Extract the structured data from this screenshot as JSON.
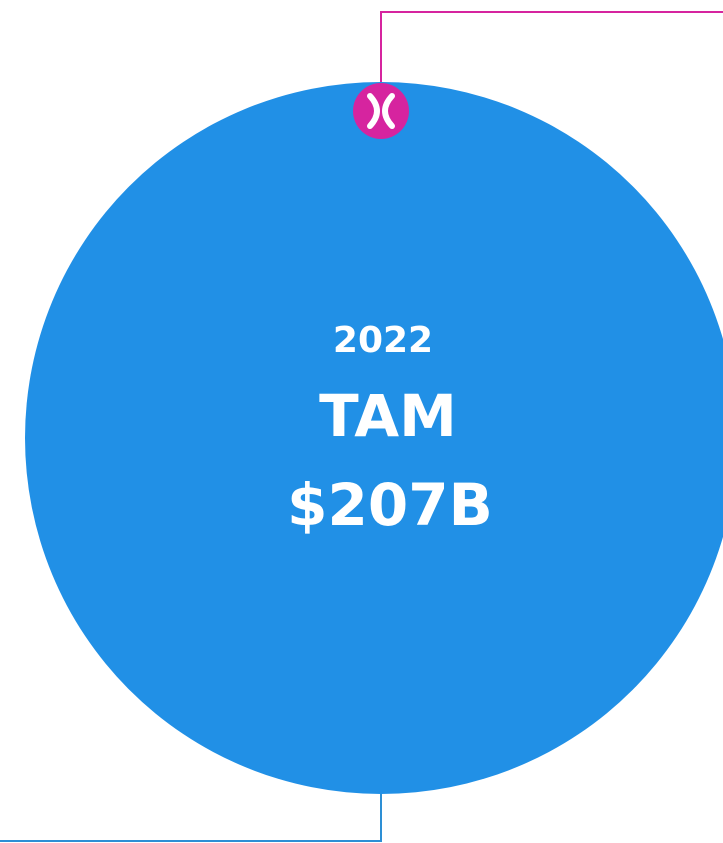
{
  "year": "2022",
  "label": "TAM",
  "value": "$207B"
}
